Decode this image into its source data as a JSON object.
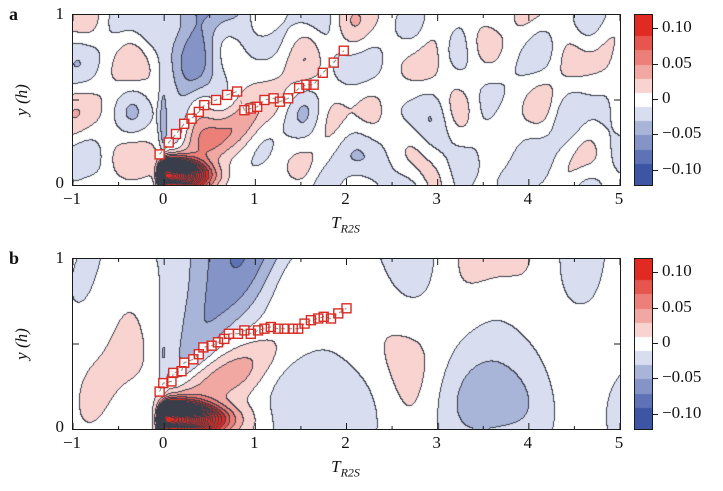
{
  "chart_data": {
    "type": "heatmap",
    "description": "Two filled-contour correlation maps (panels a and b) of a quantity versus time T_R2S and wall-normal position y(h), with a ridge of open-square markers tracing the maximum-correlation locus and a shared diverging red-blue colorbar.",
    "xlabel_base": "T",
    "xlabel_sub": "R2S",
    "ylabel": "y (h)",
    "xlim": [
      -1,
      5
    ],
    "ylim": [
      0,
      1
    ],
    "x_tick_values": [
      -1,
      0,
      1,
      2,
      3,
      4,
      5
    ],
    "x_tick_labels": [
      "−1",
      "0",
      "1",
      "2",
      "3",
      "4",
      "5"
    ],
    "y_tick_labels": [
      "0",
      "1"
    ],
    "colorbar": {
      "step": 0.02,
      "vmin": -0.12,
      "vmax": 0.12,
      "tick_labels": [
        "0.10",
        "0.05",
        "0",
        "−0.05",
        "−0.10"
      ],
      "tick_values": [
        0.1,
        0.05,
        0,
        -0.05,
        -0.1
      ],
      "palette": [
        "#3c55a5",
        "#5e73b5",
        "#8494c7",
        "#a9b4d9",
        "#d8ddf0",
        "#ffffff",
        "#f8d3d0",
        "#f2a8a2",
        "#ec7f78",
        "#e6554e",
        "#e02a22"
      ],
      "line_color": "#3a3e4a"
    },
    "marker_style": {
      "shape": "open-square",
      "color": "#d92b23",
      "connector": "thin dashed line"
    },
    "panels": [
      {
        "label": "a",
        "ylabel": "y (h)",
        "xlabel_base": "T",
        "xlabel_sub": "R2S",
        "y_ticks": [
          "0",
          "1"
        ],
        "markers": [
          [
            -0.05,
            0.18
          ],
          [
            0.05,
            0.25
          ],
          [
            0.13,
            0.3
          ],
          [
            0.22,
            0.36
          ],
          [
            0.3,
            0.39
          ],
          [
            0.38,
            0.43
          ],
          [
            0.44,
            0.47
          ],
          [
            0.57,
            0.5
          ],
          [
            0.69,
            0.53
          ],
          [
            0.8,
            0.55
          ],
          [
            0.88,
            0.44
          ],
          [
            0.95,
            0.45
          ],
          [
            1.02,
            0.46
          ],
          [
            1.1,
            0.5
          ],
          [
            1.2,
            0.51
          ],
          [
            1.27,
            0.49
          ],
          [
            1.36,
            0.51
          ],
          [
            1.48,
            0.57
          ],
          [
            1.56,
            0.59
          ],
          [
            1.64,
            0.59
          ],
          [
            1.74,
            0.66
          ],
          [
            1.86,
            0.72
          ],
          [
            1.97,
            0.79
          ]
        ],
        "field": {
          "core": {
            "amp": 0.45,
            "x0": 0.02,
            "y0": 0.05,
            "sxL": 0.07,
            "sxR": 0.38,
            "sy": 0.085
          },
          "ridge": {
            "amp": 0.055,
            "cx": 0.55,
            "sx": 0.55,
            "slope": 0.3,
            "y0": 0.1,
            "sy": 0.14
          },
          "wedge": {
            "amp": 0.06,
            "tip_y": 0.13,
            "cx0": 0.06,
            "cx1": 0.42,
            "w0": 0.04,
            "w1": 0.42
          },
          "col": {
            "amp": 0.03,
            "x0": -0.01,
            "sx": 0.045,
            "yc": 0.35,
            "sy": 0.35
          },
          "band": {
            "amp": 0.008,
            "y0": 0.12,
            "sy": 0.28,
            "x_on": 0.8
          },
          "noise": {
            "seed": 7,
            "amp": 0.0115,
            "fx": 8.0,
            "fy": 6.0,
            "octaves": 6
          }
        }
      },
      {
        "label": "b",
        "ylabel": "y (h)",
        "xlabel_base": "T",
        "xlabel_sub": "R2S",
        "y_ticks": [
          "0",
          "1"
        ],
        "markers": [
          [
            -0.05,
            0.22
          ],
          [
            -0.01,
            0.27
          ],
          [
            0.08,
            0.28
          ],
          [
            0.1,
            0.33
          ],
          [
            0.19,
            0.34
          ],
          [
            0.22,
            0.39
          ],
          [
            0.32,
            0.41
          ],
          [
            0.38,
            0.44
          ],
          [
            0.43,
            0.48
          ],
          [
            0.52,
            0.49
          ],
          [
            0.59,
            0.51
          ],
          [
            0.66,
            0.53
          ],
          [
            0.71,
            0.56
          ],
          [
            0.81,
            0.56
          ],
          [
            0.88,
            0.58
          ],
          [
            0.95,
            0.56
          ],
          [
            1.03,
            0.58
          ],
          [
            1.1,
            0.59
          ],
          [
            1.17,
            0.6
          ],
          [
            1.25,
            0.59
          ],
          [
            1.32,
            0.59
          ],
          [
            1.41,
            0.59
          ],
          [
            1.47,
            0.59
          ],
          [
            1.54,
            0.62
          ],
          [
            1.61,
            0.64
          ],
          [
            1.69,
            0.65
          ],
          [
            1.75,
            0.66
          ],
          [
            1.83,
            0.65
          ],
          [
            1.91,
            0.68
          ],
          [
            2.0,
            0.71
          ]
        ],
        "field": {
          "core": {
            "amp": 0.5,
            "x0": 0.02,
            "y0": 0.05,
            "sxL": 0.07,
            "sxR": 0.5,
            "sy": 0.09
          },
          "ridge": {
            "amp": 0.05,
            "cx": 0.6,
            "sx": 0.6,
            "slope": 0.27,
            "y0": 0.12,
            "sy": 0.15
          },
          "wedge": {
            "amp": 0.065,
            "tip_y": 0.15,
            "cx0": 0.05,
            "cx1": 0.75,
            "w0": 0.04,
            "w1": 0.6
          },
          "col": {
            "amp": 0.028,
            "x0": -0.01,
            "sx": 0.045,
            "yc": 0.4,
            "sy": 0.4
          },
          "band": {
            "amp": 0.018,
            "y0": 0.12,
            "sy": 0.3,
            "x_on": 1.0
          },
          "noise": {
            "seed": 13,
            "amp": 0.009,
            "fx": 4.5,
            "fy": 3.5,
            "octaves": 5
          }
        }
      }
    ]
  }
}
